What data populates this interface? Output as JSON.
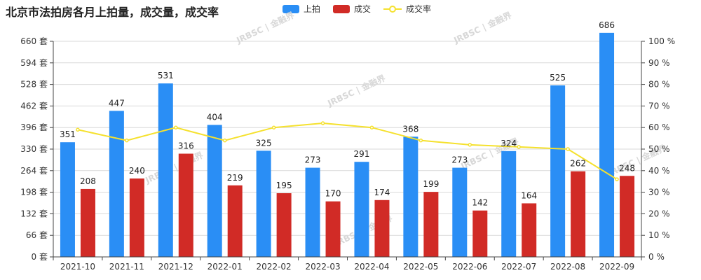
{
  "chart_data": {
    "type": "bar",
    "title": "北京市法拍房各月上拍量，成交量，成交率",
    "categories": [
      "2021-10",
      "2021-11",
      "2021-12",
      "2022-01",
      "2022-02",
      "2022-03",
      "2022-04",
      "2022-05",
      "2022-06",
      "2022-07",
      "2022-08",
      "2022-09"
    ],
    "series": [
      {
        "name": "上拍",
        "type": "bar",
        "color": "#2a8ef5",
        "values": [
          351,
          447,
          531,
          404,
          325,
          273,
          291,
          368,
          273,
          324,
          525,
          686
        ]
      },
      {
        "name": "成交",
        "type": "bar",
        "color": "#d12b26",
        "values": [
          208,
          240,
          316,
          219,
          195,
          170,
          174,
          199,
          142,
          164,
          262,
          248
        ]
      },
      {
        "name": "成交率",
        "type": "line",
        "color": "#f5e12e",
        "axis": "right",
        "values": [
          59,
          54,
          60,
          54,
          60,
          62,
          60,
          54,
          52,
          51,
          50,
          36
        ]
      }
    ],
    "y_left": {
      "min": 0,
      "max": 660,
      "ticks": [
        "0 套",
        "66 套",
        "132 套",
        "198 套",
        "264 套",
        "330 套",
        "396 套",
        "462 套",
        "528 套",
        "594 套",
        "660 套"
      ]
    },
    "y_right": {
      "min": 0,
      "max": 100,
      "ticks": [
        "0 %",
        "10 %",
        "20 %",
        "30 %",
        "40 %",
        "50 %",
        "60 %",
        "70 %",
        "80 %",
        "90 %",
        "100 %"
      ]
    },
    "legend": [
      "上拍",
      "成交",
      "成交率"
    ],
    "legend_position": "top",
    "watermark": "JRBSC | 金融界"
  }
}
